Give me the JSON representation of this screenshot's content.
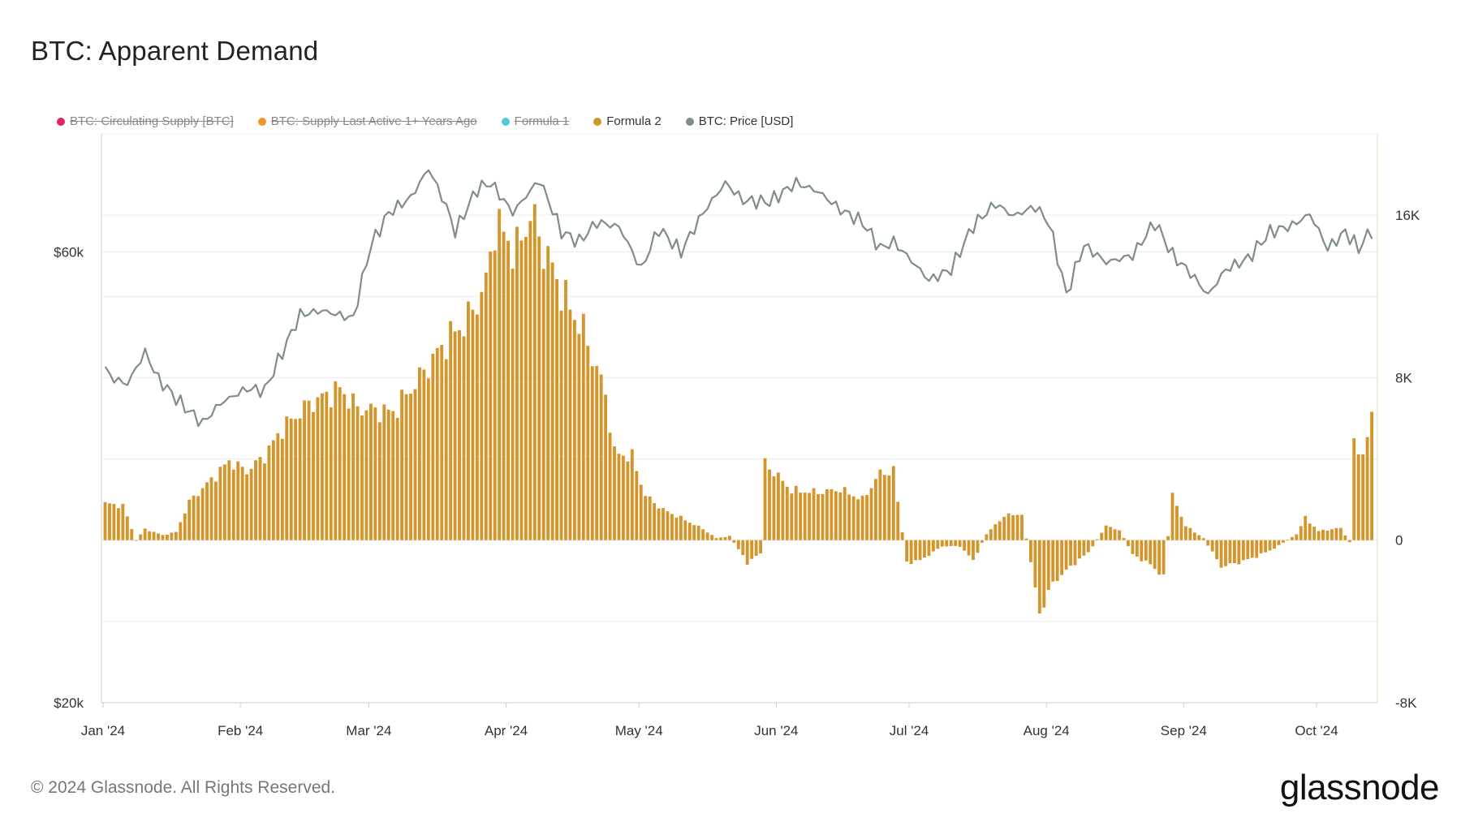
{
  "title": "BTC: Apparent Demand",
  "legend": [
    {
      "label": "BTC: Circulating Supply [BTC]",
      "color": "#e0245e",
      "visible": false
    },
    {
      "label": "BTC: Supply Last Active 1+ Years Ago",
      "color": "#f0962b",
      "visible": false
    },
    {
      "label": "Formula 1",
      "color": "#4fc9d6",
      "visible": false
    },
    {
      "label": "Formula 2",
      "color": "#d4962b",
      "visible": true
    },
    {
      "label": "BTC: Price [USD]",
      "color": "#7f8c8d",
      "visible": true
    }
  ],
  "footer": "© 2024 Glassnode. All Rights Reserved.",
  "logo": "glassnode",
  "chart_data": {
    "type": "bar",
    "title": "BTC: Apparent Demand",
    "x_start": "2024-01-01",
    "x_end": "2024-10-13",
    "x_ticks": [
      {
        "date": "2024-01-01",
        "label": "Jan '24"
      },
      {
        "date": "2024-02-01",
        "label": "Feb '24"
      },
      {
        "date": "2024-03-01",
        "label": "Mar '24"
      },
      {
        "date": "2024-04-01",
        "label": "Apr '24"
      },
      {
        "date": "2024-05-01",
        "label": "May '24"
      },
      {
        "date": "2024-06-01",
        "label": "Jun '24"
      },
      {
        "date": "2024-07-01",
        "label": "Jul '24"
      },
      {
        "date": "2024-08-01",
        "label": "Aug '24"
      },
      {
        "date": "2024-09-01",
        "label": "Sep '24"
      },
      {
        "date": "2024-10-01",
        "label": "Oct '24"
      }
    ],
    "left_axis": {
      "scale": "log",
      "range": [
        20000,
        80000
      ],
      "ticks": [
        {
          "value": 60000,
          "label": "$60k"
        },
        {
          "value": 20000,
          "label": "$20k"
        }
      ]
    },
    "right_axis": {
      "scale": "linear",
      "range": [
        -8000,
        20000
      ],
      "ticks": [
        {
          "value": 16000,
          "label": "16K"
        },
        {
          "value": 8000,
          "label": "8K"
        },
        {
          "value": 0,
          "label": "0"
        },
        {
          "value": -8000,
          "label": "-8K"
        }
      ]
    },
    "grid": true,
    "legend_position": "top-left",
    "series": [
      {
        "name": "Formula 2",
        "type": "bar",
        "axis": "right",
        "color": "#d4962b",
        "anchors": [
          [
            "2024-01-01",
            1800
          ],
          [
            "2024-01-05",
            1700
          ],
          [
            "2024-01-08",
            0
          ],
          [
            "2024-01-10",
            550
          ],
          [
            "2024-01-14",
            250
          ],
          [
            "2024-01-17",
            400
          ],
          [
            "2024-01-20",
            1900
          ],
          [
            "2024-01-26",
            3200
          ],
          [
            "2024-01-29",
            3900
          ],
          [
            "2024-02-02",
            3400
          ],
          [
            "2024-02-06",
            4150
          ],
          [
            "2024-02-10",
            5500
          ],
          [
            "2024-02-16",
            6700
          ],
          [
            "2024-02-23",
            7450
          ],
          [
            "2024-02-27",
            6500
          ],
          [
            "2024-03-06",
            6300
          ],
          [
            "2024-03-12",
            8000
          ],
          [
            "2024-03-18",
            9800
          ],
          [
            "2024-03-23",
            10900
          ],
          [
            "2024-03-27",
            12600
          ],
          [
            "2024-03-29",
            15600
          ],
          [
            "2024-04-03",
            14200
          ],
          [
            "2024-04-06",
            16100
          ],
          [
            "2024-04-09",
            14400
          ],
          [
            "2024-04-14",
            11800
          ],
          [
            "2024-04-18",
            10300
          ],
          [
            "2024-04-23",
            7200
          ],
          [
            "2024-04-25",
            4300
          ],
          [
            "2024-04-29",
            4100
          ],
          [
            "2024-05-02",
            2200
          ],
          [
            "2024-05-06",
            1500
          ],
          [
            "2024-05-10",
            1100
          ],
          [
            "2024-05-15",
            550
          ],
          [
            "2024-05-18",
            100
          ],
          [
            "2024-05-21",
            200
          ],
          [
            "2024-05-25",
            -1100
          ],
          [
            "2024-05-28",
            -650
          ],
          [
            "2024-05-29",
            3800
          ],
          [
            "2024-06-04",
            2450
          ],
          [
            "2024-06-10",
            2350
          ],
          [
            "2024-06-15",
            2500
          ],
          [
            "2024-06-20",
            2000
          ],
          [
            "2024-06-24",
            3300
          ],
          [
            "2024-06-27",
            3400
          ],
          [
            "2024-06-30",
            -1100
          ],
          [
            "2024-07-03",
            -1000
          ],
          [
            "2024-07-08",
            -300
          ],
          [
            "2024-07-12",
            -300
          ],
          [
            "2024-07-15",
            -1000
          ],
          [
            "2024-07-18",
            300
          ],
          [
            "2024-07-22",
            1200
          ],
          [
            "2024-07-26",
            1300
          ],
          [
            "2024-07-30",
            -3600
          ],
          [
            "2024-08-02",
            -2100
          ],
          [
            "2024-08-06",
            -1300
          ],
          [
            "2024-08-10",
            -600
          ],
          [
            "2024-08-14",
            700
          ],
          [
            "2024-08-17",
            500
          ],
          [
            "2024-08-20",
            -700
          ],
          [
            "2024-08-24",
            -1200
          ],
          [
            "2024-08-27",
            -1800
          ],
          [
            "2024-08-29",
            2200
          ],
          [
            "2024-09-01",
            700
          ],
          [
            "2024-09-05",
            100
          ],
          [
            "2024-09-09",
            -1300
          ],
          [
            "2024-09-13",
            -1100
          ],
          [
            "2024-09-17",
            -800
          ],
          [
            "2024-09-21",
            -400
          ],
          [
            "2024-09-26",
            300
          ],
          [
            "2024-09-28",
            1100
          ],
          [
            "2024-10-01",
            450
          ],
          [
            "2024-10-06",
            600
          ],
          [
            "2024-10-08",
            -100
          ],
          [
            "2024-10-09",
            4650
          ],
          [
            "2024-10-11",
            4300
          ],
          [
            "2024-10-13",
            5850
          ]
        ]
      },
      {
        "name": "BTC: Price [USD]",
        "type": "line",
        "axis": "left",
        "color": "#7f8c8d",
        "anchors": [
          [
            "2024-01-01",
            45000
          ],
          [
            "2024-01-03",
            44000
          ],
          [
            "2024-01-06",
            43500
          ],
          [
            "2024-01-10",
            47000
          ],
          [
            "2024-01-13",
            44000
          ],
          [
            "2024-01-18",
            41500
          ],
          [
            "2024-01-23",
            39500
          ],
          [
            "2024-01-27",
            41500
          ],
          [
            "2024-02-02",
            43000
          ],
          [
            "2024-02-06",
            42800
          ],
          [
            "2024-02-10",
            47000
          ],
          [
            "2024-02-14",
            51500
          ],
          [
            "2024-02-19",
            52000
          ],
          [
            "2024-02-26",
            51000
          ],
          [
            "2024-03-01",
            61000
          ],
          [
            "2024-03-05",
            66000
          ],
          [
            "2024-03-10",
            68500
          ],
          [
            "2024-03-14",
            73500
          ],
          [
            "2024-03-18",
            67000
          ],
          [
            "2024-03-20",
            63000
          ],
          [
            "2024-03-25",
            70000
          ],
          [
            "2024-03-28",
            71000
          ],
          [
            "2024-04-02",
            66000
          ],
          [
            "2024-04-08",
            71500
          ],
          [
            "2024-04-13",
            63000
          ],
          [
            "2024-04-17",
            61500
          ],
          [
            "2024-04-21",
            64500
          ],
          [
            "2024-04-26",
            63800
          ],
          [
            "2024-05-01",
            57500
          ],
          [
            "2024-05-05",
            63500
          ],
          [
            "2024-05-10",
            60000
          ],
          [
            "2024-05-15",
            66000
          ],
          [
            "2024-05-20",
            71000
          ],
          [
            "2024-05-24",
            68000
          ],
          [
            "2024-05-30",
            67800
          ],
          [
            "2024-06-05",
            71000
          ],
          [
            "2024-06-10",
            69500
          ],
          [
            "2024-06-15",
            66500
          ],
          [
            "2024-06-20",
            64500
          ],
          [
            "2024-06-24",
            60500
          ],
          [
            "2024-06-27",
            61500
          ],
          [
            "2024-07-05",
            56000
          ],
          [
            "2024-07-10",
            57500
          ],
          [
            "2024-07-15",
            64000
          ],
          [
            "2024-07-20",
            67500
          ],
          [
            "2024-07-24",
            65500
          ],
          [
            "2024-07-29",
            67000
          ],
          [
            "2024-08-01",
            64500
          ],
          [
            "2024-08-05",
            54000
          ],
          [
            "2024-08-09",
            61000
          ],
          [
            "2024-08-14",
            58500
          ],
          [
            "2024-08-20",
            59500
          ],
          [
            "2024-08-25",
            64500
          ],
          [
            "2024-08-29",
            59500
          ],
          [
            "2024-09-02",
            57000
          ],
          [
            "2024-09-06",
            54000
          ],
          [
            "2024-09-10",
            57500
          ],
          [
            "2024-09-15",
            59000
          ],
          [
            "2024-09-20",
            63000
          ],
          [
            "2024-09-25",
            64000
          ],
          [
            "2024-09-29",
            65800
          ],
          [
            "2024-10-03",
            60500
          ],
          [
            "2024-10-07",
            63000
          ],
          [
            "2024-10-10",
            60500
          ],
          [
            "2024-10-12",
            62500
          ],
          [
            "2024-10-13",
            63100
          ]
        ]
      }
    ]
  }
}
